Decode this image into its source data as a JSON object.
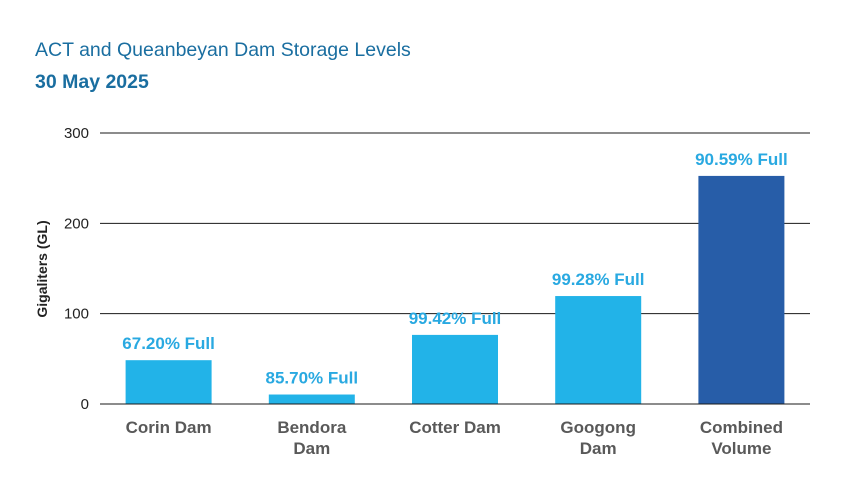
{
  "chart_data": {
    "type": "bar",
    "title": "ACT and Queanbeyan Dam Storage Levels",
    "subtitle": "30 May 2025",
    "ylabel": "Gigaliters (GL)",
    "ylim": [
      0,
      300
    ],
    "yticks": [
      "0",
      "100",
      "200",
      "300"
    ],
    "grid": true,
    "categories": [
      [
        "Corin Dam"
      ],
      [
        "Bendora",
        "Dam"
      ],
      [
        "Cotter Dam"
      ],
      [
        "Googong",
        "Dam"
      ],
      [
        "Combined",
        "Volume"
      ]
    ],
    "values": [
      48.5,
      10.5,
      76.5,
      119.5,
      252.5
    ],
    "data_labels": [
      "67.20% Full",
      "85.70% Full",
      "99.42% Full",
      "99.28% Full",
      "90.59% Full"
    ],
    "colors": [
      "#22b3e8",
      "#22b3e8",
      "#22b3e8",
      "#22b3e8",
      "#275da8"
    ]
  }
}
